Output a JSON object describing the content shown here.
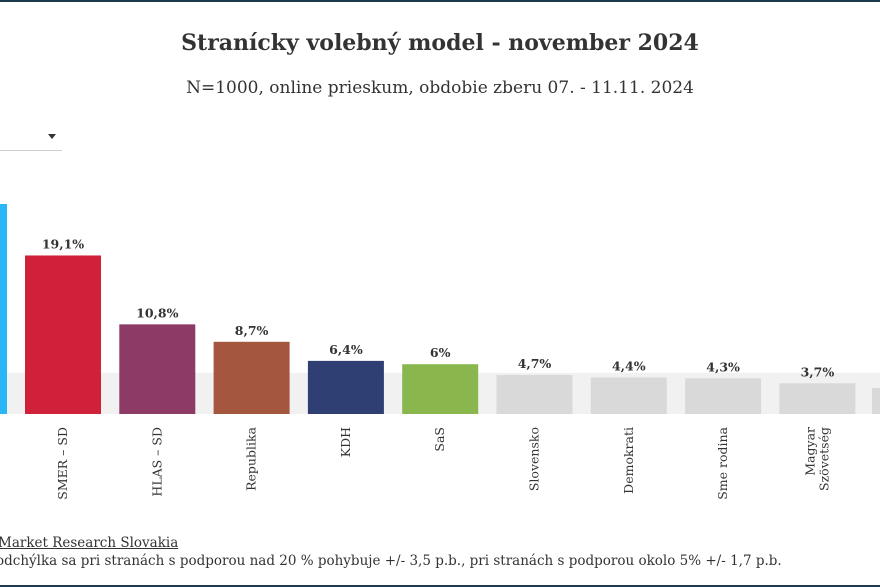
{
  "header": {
    "title": "Stranícky volebný model - november 2024",
    "subtitle": "N=1000, online prieskum, obdobie zberu 07. - 11.11. 2024"
  },
  "filter": {
    "selected": "",
    "icon": "caret-down-icon"
  },
  "footer": {
    "source": "Market Research Slovakia",
    "note": "odchýlka sa pri stranách s podporou nad 20 % pohybuje +/- 3,5 p.b., pri stranách s podporou okolo 5% +/- 1,7 p.b."
  },
  "chart_data": {
    "type": "bar",
    "title": "Stranícky volebný model - november 2024",
    "subtitle": "N=1000, online prieskum, obdobie zberu 07. - 11.11. 2024",
    "categories": [
      "SMER – SD",
      "HLAS – SD",
      "Republika",
      "KDH",
      "SaS",
      "Slovensko",
      "Demokrati",
      "Sme rodina",
      "Magyar Szövetség"
    ],
    "values": [
      19.1,
      10.8,
      8.7,
      6.4,
      6,
      4.7,
      4.4,
      4.3,
      3.7
    ],
    "value_labels": [
      "19,1%",
      "10,8%",
      "8,7%",
      "6,4%",
      "6%",
      "4,7%",
      "4,4%",
      "4,3%",
      "3,7%"
    ],
    "colors": [
      "#d0213a",
      "#8e3a66",
      "#a5563f",
      "#2f3f73",
      "#8ab64e",
      "#d9d9d9",
      "#d9d9d9",
      "#d9d9d9",
      "#d9d9d9"
    ],
    "partial_left_bar": {
      "color": "#29b6f6"
    },
    "partial_right_bar": {
      "color": "#d9d9d9"
    },
    "threshold_band": {
      "value": 4,
      "color": "#f1f1f1"
    },
    "ylim": [
      0,
      25
    ],
    "xlabel": "",
    "ylabel": "",
    "grid": false,
    "legend": "none"
  }
}
